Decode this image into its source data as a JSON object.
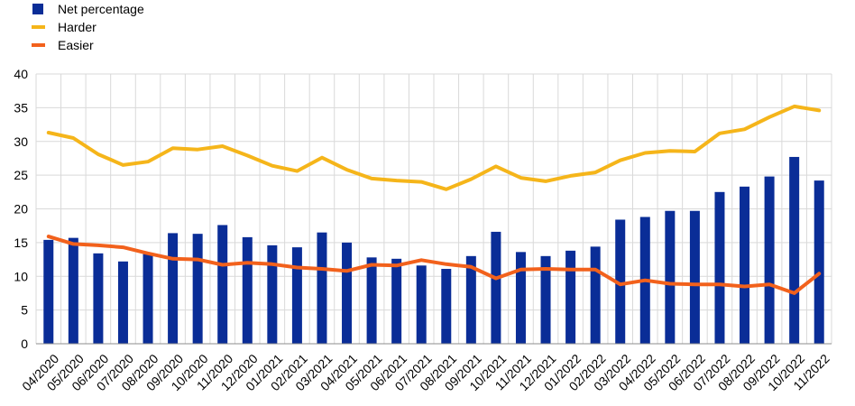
{
  "chart_data": {
    "type": "bar",
    "categories": [
      "04/2020",
      "05/2020",
      "06/2020",
      "07/2020",
      "08/2020",
      "09/2020",
      "10/2020",
      "11/2020",
      "12/2020",
      "01/2021",
      "02/2021",
      "03/2021",
      "04/2021",
      "05/2021",
      "06/2021",
      "07/2021",
      "08/2021",
      "09/2021",
      "10/2021",
      "11/2021",
      "12/2021",
      "01/2022",
      "02/2022",
      "03/2022",
      "04/2022",
      "05/2022",
      "06/2022",
      "07/2022",
      "08/2022",
      "09/2022",
      "10/2022",
      "11/2022"
    ],
    "series": [
      {
        "name": "Net percentage",
        "type": "bar",
        "color": "#0a2d97",
        "values": [
          15.4,
          15.7,
          13.4,
          12.2,
          13.3,
          16.4,
          16.3,
          17.6,
          15.8,
          14.6,
          14.3,
          16.5,
          15.0,
          12.8,
          12.6,
          11.6,
          11.1,
          13.0,
          16.6,
          13.6,
          13.0,
          13.8,
          14.4,
          18.4,
          18.8,
          19.7,
          19.7,
          22.5,
          23.3,
          24.8,
          27.7,
          24.2
        ]
      },
      {
        "name": "Harder",
        "type": "line",
        "color": "#f5b51a",
        "values": [
          31.3,
          30.5,
          28.1,
          26.5,
          27.0,
          29.0,
          28.8,
          29.3,
          27.9,
          26.4,
          25.6,
          27.6,
          25.8,
          24.5,
          24.2,
          24.0,
          22.9,
          24.4,
          26.3,
          24.6,
          24.1,
          24.9,
          25.4,
          27.2,
          28.3,
          28.6,
          28.5,
          31.2,
          31.8,
          33.6,
          35.2,
          34.6
        ]
      },
      {
        "name": "Easier",
        "type": "line",
        "color": "#f2611c",
        "values": [
          15.9,
          14.8,
          14.6,
          14.3,
          13.4,
          12.6,
          12.5,
          11.7,
          12.0,
          11.8,
          11.3,
          11.1,
          10.8,
          11.7,
          11.6,
          12.4,
          11.8,
          11.4,
          9.7,
          11.0,
          11.1,
          11.0,
          11.0,
          8.8,
          9.4,
          8.9,
          8.8,
          8.8,
          8.5,
          8.8,
          7.5,
          10.4
        ]
      }
    ],
    "y_ticks": [
      "0",
      "5",
      "10",
      "15",
      "20",
      "25",
      "30",
      "35",
      "40"
    ],
    "ylim": [
      0,
      40
    ],
    "grid": true,
    "legend_position": "top-left"
  }
}
